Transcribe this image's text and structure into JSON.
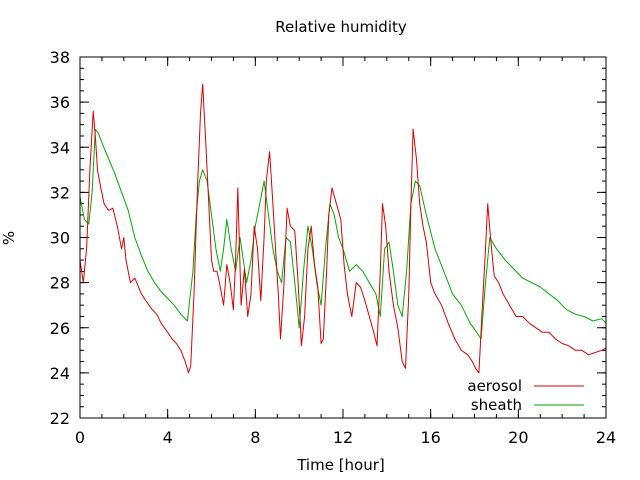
{
  "chart_data": {
    "type": "line",
    "title": "Relative humidity",
    "xlabel": "Time [hour]",
    "ylabel": "%",
    "xlim": [
      0,
      24
    ],
    "ylim": [
      22,
      38
    ],
    "xticks": [
      0,
      4,
      8,
      12,
      16,
      20,
      24
    ],
    "yticks": [
      22,
      24,
      26,
      28,
      30,
      32,
      34,
      36,
      38
    ],
    "grid": false,
    "legend_position": "bottom-right",
    "series": [
      {
        "name": "aerosol",
        "color": "#dd0000",
        "x": [
          0,
          0.15,
          0.3,
          0.45,
          0.6,
          0.7,
          0.8,
          0.95,
          1.1,
          1.3,
          1.5,
          1.7,
          1.9,
          2.0,
          2.1,
          2.3,
          2.5,
          2.8,
          3.0,
          3.3,
          3.5,
          3.7,
          4.0,
          4.2,
          4.4,
          4.6,
          4.8,
          4.95,
          5.05,
          5.2,
          5.35,
          5.5,
          5.6,
          5.75,
          5.9,
          6.0,
          6.1,
          6.25,
          6.4,
          6.55,
          6.7,
          6.85,
          7.0,
          7.1,
          7.2,
          7.35,
          7.5,
          7.65,
          7.8,
          7.95,
          8.1,
          8.25,
          8.4,
          8.5,
          8.65,
          8.8,
          8.95,
          9.05,
          9.15,
          9.3,
          9.45,
          9.6,
          9.8,
          9.95,
          10.1,
          10.25,
          10.4,
          10.55,
          10.7,
          10.85,
          11.0,
          11.1,
          11.25,
          11.35,
          11.5,
          11.7,
          11.9,
          12.05,
          12.2,
          12.4,
          12.6,
          12.8,
          13.0,
          13.2,
          13.4,
          13.55,
          13.7,
          13.8,
          13.95,
          14.1,
          14.3,
          14.5,
          14.7,
          14.85,
          15.0,
          15.1,
          15.2,
          15.35,
          15.5,
          15.65,
          15.8,
          16.0,
          16.2,
          16.5,
          16.8,
          17.1,
          17.4,
          17.7,
          17.9,
          18.05,
          18.2,
          18.35,
          18.5,
          18.6,
          18.75,
          18.9,
          19.1,
          19.3,
          19.6,
          19.9,
          20.2,
          20.5,
          20.8,
          21.1,
          21.4,
          21.7,
          22.0,
          22.3,
          22.6,
          22.9,
          23.2,
          23.5,
          23.8,
          24.0
        ],
        "values": [
          29.0,
          28.0,
          29.5,
          33.0,
          35.6,
          34.5,
          33.0,
          32.2,
          31.5,
          31.2,
          31.3,
          30.5,
          29.5,
          30.0,
          29.0,
          28.0,
          28.2,
          27.5,
          27.2,
          26.8,
          26.6,
          26.2,
          25.8,
          25.5,
          25.3,
          25.0,
          24.5,
          24.0,
          24.3,
          27.5,
          32.0,
          35.5,
          36.8,
          34.0,
          31.0,
          29.0,
          28.5,
          28.5,
          27.8,
          27.0,
          28.8,
          28.0,
          26.8,
          29.0,
          32.2,
          27.0,
          28.6,
          26.5,
          27.5,
          30.5,
          29.5,
          27.2,
          30.0,
          32.5,
          33.8,
          31.5,
          29.0,
          27.5,
          25.5,
          27.8,
          31.3,
          30.5,
          30.3,
          28.0,
          25.2,
          26.5,
          29.5,
          30.5,
          28.8,
          27.8,
          25.3,
          25.5,
          28.5,
          31.0,
          32.2,
          31.5,
          30.8,
          28.8,
          27.5,
          26.5,
          28.0,
          27.8,
          27.2,
          26.5,
          25.8,
          25.2,
          28.5,
          31.5,
          30.5,
          28.5,
          27.0,
          26.0,
          24.5,
          24.2,
          27.5,
          31.5,
          34.8,
          33.5,
          31.5,
          30.5,
          29.8,
          28.0,
          27.5,
          27.0,
          26.2,
          25.5,
          25.0,
          24.8,
          24.5,
          24.2,
          24.0,
          26.8,
          29.5,
          31.5,
          29.8,
          28.3,
          28.0,
          27.5,
          27.0,
          26.5,
          26.5,
          26.2,
          26.0,
          25.8,
          25.8,
          25.5,
          25.3,
          25.2,
          25.0,
          25.0,
          24.8,
          24.9,
          25.0,
          25.1
        ]
      },
      {
        "name": "sheath",
        "color": "#00aa00",
        "x": [
          0,
          0.2,
          0.4,
          0.55,
          0.7,
          0.85,
          1.0,
          1.3,
          1.6,
          1.9,
          2.2,
          2.5,
          2.8,
          3.1,
          3.4,
          3.7,
          4.0,
          4.3,
          4.6,
          4.9,
          5.15,
          5.3,
          5.45,
          5.6,
          5.8,
          6.0,
          6.2,
          6.4,
          6.55,
          6.7,
          6.9,
          7.1,
          7.3,
          7.45,
          7.6,
          7.8,
          8.0,
          8.2,
          8.4,
          8.6,
          8.8,
          9.0,
          9.2,
          9.4,
          9.6,
          9.8,
          10.0,
          10.2,
          10.4,
          10.6,
          10.8,
          11.0,
          11.2,
          11.4,
          11.6,
          11.8,
          12.0,
          12.3,
          12.6,
          12.9,
          13.2,
          13.5,
          13.7,
          13.9,
          14.1,
          14.3,
          14.5,
          14.7,
          14.9,
          15.1,
          15.3,
          15.5,
          15.8,
          16.2,
          16.6,
          17.0,
          17.4,
          17.8,
          18.1,
          18.3,
          18.5,
          18.7,
          19.0,
          19.4,
          19.8,
          20.2,
          20.6,
          21.0,
          21.4,
          21.8,
          22.2,
          22.6,
          23.0,
          23.4,
          23.8,
          24.0
        ],
        "values": [
          31.8,
          30.8,
          30.6,
          32.0,
          34.8,
          34.6,
          34.2,
          33.5,
          32.8,
          32.0,
          31.2,
          30.0,
          29.2,
          28.5,
          28.0,
          27.6,
          27.3,
          27.0,
          26.6,
          26.3,
          28.5,
          31.0,
          32.5,
          33.0,
          32.5,
          31.0,
          29.5,
          28.5,
          29.5,
          30.8,
          29.5,
          28.5,
          30.0,
          29.0,
          28.0,
          29.0,
          30.5,
          31.5,
          32.5,
          31.0,
          29.5,
          28.5,
          28.0,
          30.0,
          29.8,
          28.0,
          26.0,
          28.5,
          30.5,
          29.5,
          28.0,
          27.0,
          29.5,
          31.5,
          31.0,
          30.0,
          29.5,
          28.5,
          28.8,
          28.5,
          28.0,
          27.5,
          26.5,
          29.5,
          29.8,
          28.5,
          27.0,
          26.5,
          28.5,
          31.5,
          32.5,
          32.3,
          31.0,
          29.5,
          28.5,
          27.5,
          27.0,
          26.2,
          25.8,
          25.5,
          28.0,
          30.0,
          29.5,
          29.0,
          28.6,
          28.2,
          28.0,
          27.8,
          27.5,
          27.2,
          26.8,
          26.6,
          26.5,
          26.3,
          26.4,
          26.2
        ]
      }
    ]
  }
}
